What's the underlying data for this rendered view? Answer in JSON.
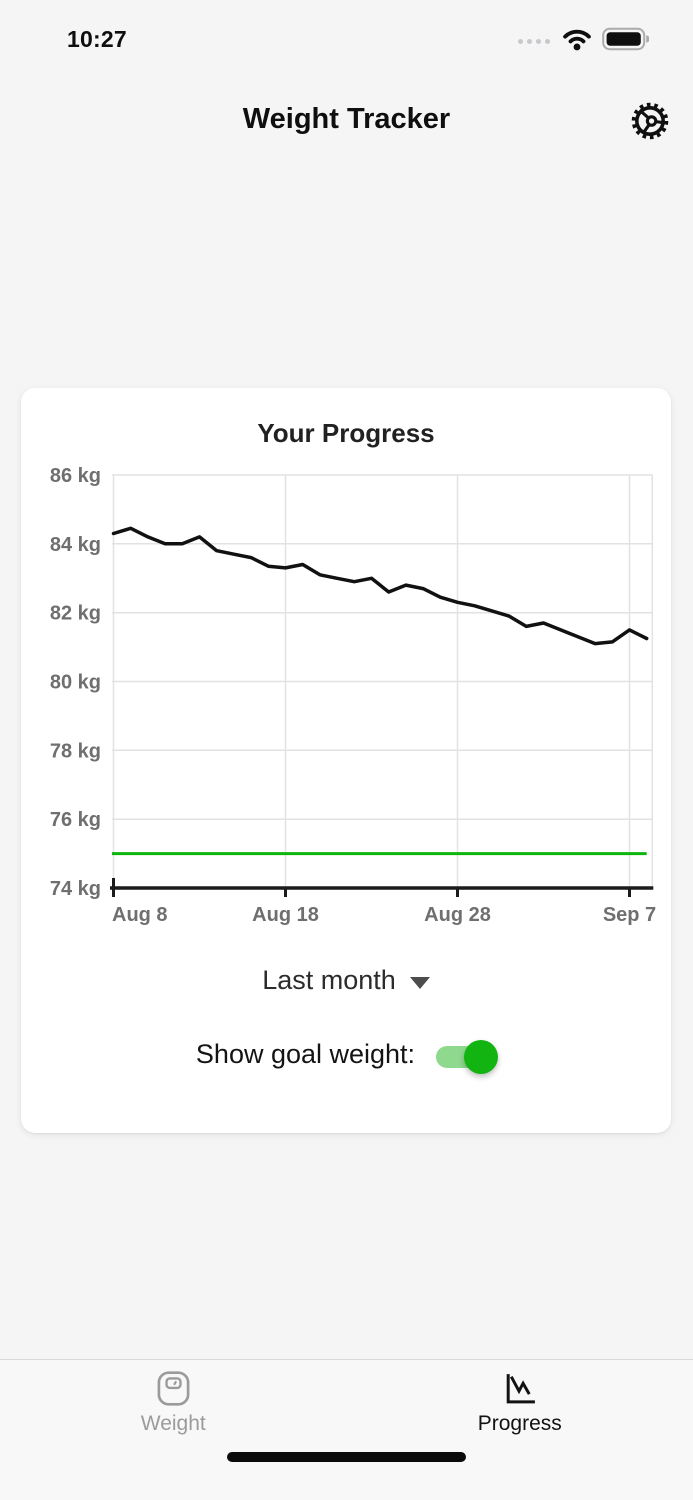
{
  "status_bar": {
    "time": "10:27"
  },
  "header": {
    "title": "Weight Tracker"
  },
  "card": {
    "title": "Your Progress",
    "range_selector": {
      "label": "Last month"
    },
    "goal_toggle": {
      "label": "Show goal weight:",
      "state": "on"
    }
  },
  "chart_data": {
    "type": "line",
    "title": "Your Progress",
    "x": [
      "Aug 8",
      "Aug 9",
      "Aug 10",
      "Aug 11",
      "Aug 12",
      "Aug 13",
      "Aug 14",
      "Aug 15",
      "Aug 16",
      "Aug 17",
      "Aug 18",
      "Aug 19",
      "Aug 20",
      "Aug 21",
      "Aug 22",
      "Aug 23",
      "Aug 24",
      "Aug 25",
      "Aug 26",
      "Aug 27",
      "Aug 28",
      "Aug 29",
      "Aug 30",
      "Aug 31",
      "Sep 1",
      "Sep 2",
      "Sep 3",
      "Sep 4",
      "Sep 5",
      "Sep 6",
      "Sep 7",
      "Sep 8"
    ],
    "series": [
      {
        "name": "Weight",
        "color": "#111111",
        "values": [
          84.3,
          84.45,
          84.2,
          84.0,
          84.0,
          84.2,
          83.8,
          83.7,
          83.6,
          83.35,
          83.3,
          83.4,
          83.1,
          83.0,
          82.9,
          83.0,
          82.6,
          82.8,
          82.7,
          82.45,
          82.3,
          82.2,
          82.05,
          81.9,
          81.6,
          81.7,
          81.5,
          81.3,
          81.1,
          81.15,
          81.5,
          81.25
        ]
      }
    ],
    "goal_line": {
      "label": "Goal weight",
      "value": 75,
      "color": "#0db50d"
    },
    "ylim": [
      74,
      86
    ],
    "ystep": 2,
    "y_unit": "kg",
    "ytick_labels": [
      "86 kg",
      "84 kg",
      "82 kg",
      "80 kg",
      "78 kg",
      "76 kg",
      "74 kg"
    ],
    "xtick_indices": [
      0,
      10,
      20,
      30
    ],
    "xtick_labels": [
      "Aug 8",
      "Aug 18",
      "Aug 28",
      "Sep 7"
    ],
    "grid": true,
    "legend": "none"
  },
  "tab_bar": {
    "tabs": [
      {
        "label": "Weight",
        "icon": "scale-icon",
        "active": false
      },
      {
        "label": "Progress",
        "icon": "chart-icon",
        "active": true
      }
    ]
  },
  "colors": {
    "accent_green": "#12b412",
    "toggle_track": "#8fd98f",
    "goal_line": "#0db50d",
    "series_line": "#111111"
  }
}
